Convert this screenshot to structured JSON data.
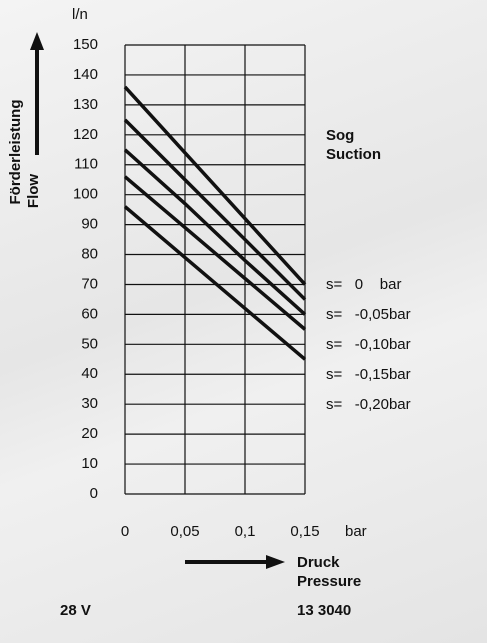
{
  "chart_data": {
    "type": "line",
    "y_unit": "l/n",
    "y_label": [
      "Förderleistung",
      "Flow"
    ],
    "x_unit": "bar",
    "x_label": [
      "Druck",
      "Pressure"
    ],
    "legend_title": [
      "Sog",
      "Suction"
    ],
    "x": [
      0,
      0.05,
      0.1,
      0.15
    ],
    "xlim": [
      0,
      0.15
    ],
    "xticks": [
      0,
      {
        "value": 0.05,
        "label": "0,05"
      },
      {
        "value": 0.1,
        "label": "0,1"
      },
      {
        "value": 0.15,
        "label": "0,15"
      }
    ],
    "ylim": [
      0,
      150
    ],
    "yticks": [
      0,
      10,
      20,
      30,
      40,
      50,
      60,
      70,
      80,
      90,
      100,
      110,
      120,
      130,
      140,
      150
    ],
    "grid": true,
    "series": [
      {
        "name": "s=   0    bar",
        "color": "#111111",
        "values": [
          136,
          114,
          92,
          70
        ]
      },
      {
        "name": "s=   -0,05bar",
        "color": "#111111",
        "values": [
          125,
          105,
          85,
          65
        ]
      },
      {
        "name": "s=   -0,10bar",
        "color": "#111111",
        "values": [
          115,
          97,
          78,
          60
        ]
      },
      {
        "name": "s=   -0,15bar",
        "color": "#111111",
        "values": [
          106,
          89,
          72,
          55
        ]
      },
      {
        "name": "s=   -0,20bar",
        "color": "#111111",
        "values": [
          96,
          79,
          62,
          45
        ]
      }
    ]
  },
  "footer": {
    "left": "28 V",
    "right": "13 3040"
  }
}
